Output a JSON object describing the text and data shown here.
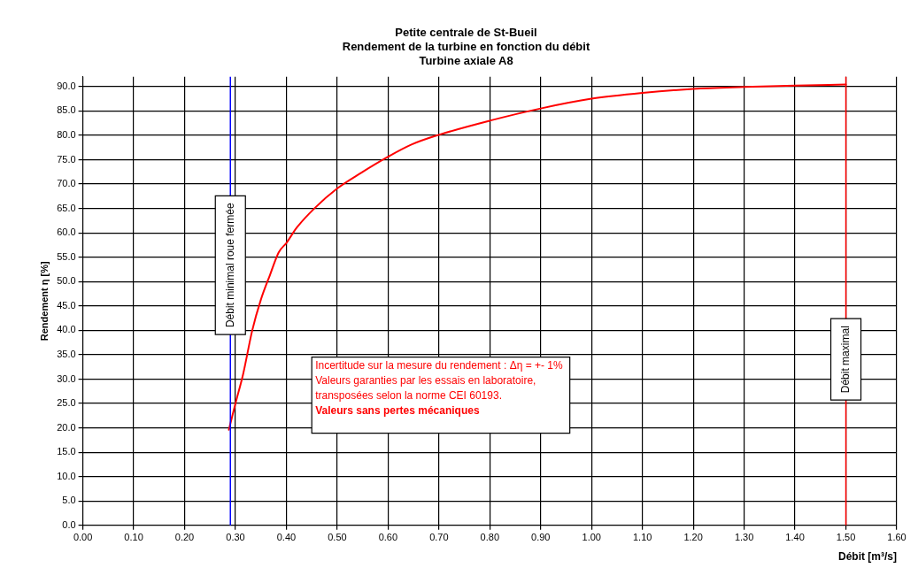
{
  "chart_data": {
    "type": "line",
    "title": "Petite centrale de St-Bueil",
    "subtitle": "Rendement de la turbine en fonction du débit\nTurbine axiale A8",
    "xlabel": "Débit [m³/s]",
    "ylabel": "Rendement η [%]",
    "series": [
      {
        "color": "#ff0000",
        "x": [
          0.287,
          0.3,
          0.315,
          0.333,
          0.35,
          0.368,
          0.385,
          0.4,
          0.42,
          0.455,
          0.5,
          0.547,
          0.6,
          0.646,
          0.7,
          0.8,
          0.9,
          1.0,
          1.1,
          1.2,
          1.3,
          1.4,
          1.5
        ],
        "values": [
          19.6,
          25,
          31,
          40,
          46.3,
          51.4,
          56,
          57.9,
          61,
          65,
          69.1,
          72.3,
          75.6,
          78.1,
          80.1,
          83.0,
          85.5,
          87.5,
          88.7,
          89.5,
          89.9,
          90.2,
          90.4
        ]
      }
    ],
    "xlim": [
      0,
      1.6
    ],
    "ylim": [
      0,
      92
    ],
    "xticks": [
      {
        "value": 0,
        "label": "0.00"
      },
      {
        "value": 0.1,
        "label": "0.10"
      },
      {
        "value": 0.2,
        "label": "0.20"
      },
      {
        "value": 0.3,
        "label": "0.30"
      },
      {
        "value": 0.4,
        "label": "0.40"
      },
      {
        "value": 0.5,
        "label": "0.50"
      },
      {
        "value": 0.6,
        "label": "0.60"
      },
      {
        "value": 0.7,
        "label": "0.70"
      },
      {
        "value": 0.8,
        "label": "0.80"
      },
      {
        "value": 0.9,
        "label": "0.90"
      },
      {
        "value": 1.0,
        "label": "1.00"
      },
      {
        "value": 1.1,
        "label": "1.10"
      },
      {
        "value": 1.2,
        "label": "1.20"
      },
      {
        "value": 1.3,
        "label": "1.30"
      },
      {
        "value": 1.4,
        "label": "1.40"
      },
      {
        "value": 1.5,
        "label": "1.50"
      },
      {
        "value": 1.6,
        "label": "1.60"
      }
    ],
    "yticks": [
      {
        "value": 0,
        "label": "0.0"
      },
      {
        "value": 5,
        "label": "5.0"
      },
      {
        "value": 10,
        "label": "10.0"
      },
      {
        "value": 15,
        "label": "15.0"
      },
      {
        "value": 20,
        "label": "20.0"
      },
      {
        "value": 25,
        "label": "25.0"
      },
      {
        "value": 30,
        "label": "30.0"
      },
      {
        "value": 35,
        "label": "35.0"
      },
      {
        "value": 40,
        "label": "40.0"
      },
      {
        "value": 45,
        "label": "45.0"
      },
      {
        "value": 50,
        "label": "50.0"
      },
      {
        "value": 55,
        "label": "55.0"
      },
      {
        "value": 60,
        "label": "60.0"
      },
      {
        "value": 65,
        "label": "65.0"
      },
      {
        "value": 70,
        "label": "70.0"
      },
      {
        "value": 75,
        "label": "75.0"
      },
      {
        "value": 80,
        "label": "80.0"
      },
      {
        "value": 85,
        "label": "85.0"
      },
      {
        "value": 90,
        "label": "90.0"
      }
    ],
    "ref_lines": [
      {
        "axis": "x",
        "value": 0.29,
        "label": "Débit minimal roue fermée",
        "color": "#0000ff"
      },
      {
        "axis": "x",
        "value": 1.5,
        "label": "Débit maximal",
        "color": "#ff0000"
      }
    ],
    "annotations": [
      "Incertitude sur la mesure du rendement : Δη = +- 1%",
      "Valeurs garanties par les essais en laboratoire,",
      "transposées selon la norme CEI 60193.",
      "Valeurs sans pertes mécaniques"
    ],
    "grid": true,
    "legend": false,
    "marker": "none",
    "line_style": "solid"
  }
}
